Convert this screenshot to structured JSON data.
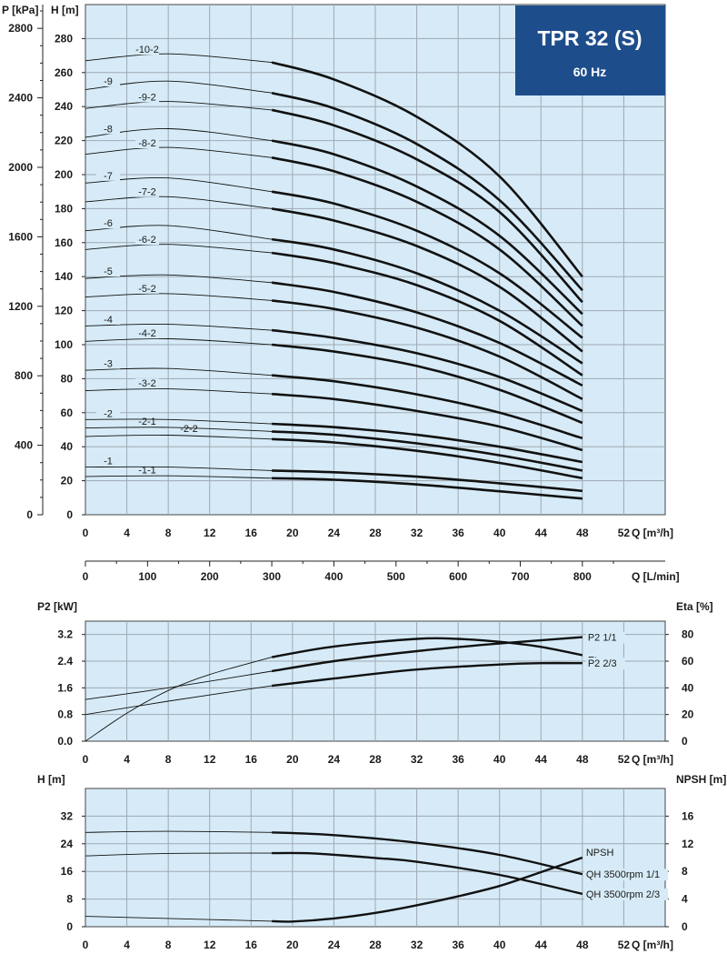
{
  "header": {
    "title": "TPR 32 (S)",
    "subtitle": "60 Hz",
    "box_color": "#1e4d8c"
  },
  "colors": {
    "plot_bg": "#d6ebf7",
    "curve": "#111111"
  },
  "chart_data": [
    {
      "id": "head",
      "type": "line",
      "ylabel_left": "P [kPa]",
      "ylabel_right": "H [m]",
      "xlabel": "Q [m³/h]",
      "xlabel2": "Q [L/min]",
      "xlim": [
        0,
        56
      ],
      "ylim": [
        0,
        300
      ],
      "x_ticks": [
        0,
        4,
        8,
        12,
        16,
        20,
        24,
        28,
        32,
        36,
        40,
        44,
        48,
        52
      ],
      "y_ticks": [
        0,
        20,
        40,
        60,
        80,
        100,
        120,
        140,
        160,
        180,
        200,
        220,
        240,
        260,
        280
      ],
      "kpa_ticks": [
        0,
        400,
        800,
        1200,
        1600,
        2000,
        2400,
        2800
      ],
      "lmin_ticks": [
        0,
        100,
        200,
        300,
        400,
        500,
        600,
        700,
        800
      ],
      "grid": true,
      "operating_range": [
        18,
        48
      ],
      "series": [
        {
          "name": "-1-1",
          "values": [
            [
              0,
              22.5
            ],
            [
              8,
              22.9
            ],
            [
              18,
              21.5
            ],
            [
              24,
              20.6
            ],
            [
              32,
              17.8
            ],
            [
              40,
              13.8
            ],
            [
              48,
              9.5
            ]
          ]
        },
        {
          "name": "-1",
          "values": [
            [
              0,
              28
            ],
            [
              8,
              28
            ],
            [
              18,
              26
            ],
            [
              24,
              25
            ],
            [
              32,
              22.4
            ],
            [
              40,
              18.5
            ],
            [
              48,
              14
            ]
          ]
        },
        {
          "name": "-2-2",
          "values": [
            [
              0,
              46
            ],
            [
              8,
              46.8
            ],
            [
              18,
              44.5
            ],
            [
              24,
              42.5
            ],
            [
              32,
              37.6
            ],
            [
              40,
              30.5
            ],
            [
              48,
              21.5
            ]
          ]
        },
        {
          "name": "-2-1",
          "values": [
            [
              0,
              51
            ],
            [
              8,
              51.4
            ],
            [
              18,
              49
            ],
            [
              24,
              47
            ],
            [
              32,
              42
            ],
            [
              40,
              35
            ],
            [
              48,
              26
            ]
          ]
        },
        {
          "name": "-2",
          "values": [
            [
              0,
              56
            ],
            [
              8,
              56
            ],
            [
              18,
              53.5
            ],
            [
              24,
              51.5
            ],
            [
              32,
              47
            ],
            [
              40,
              40
            ],
            [
              48,
              31
            ]
          ]
        },
        {
          "name": "-3-2",
          "values": [
            [
              0,
              73
            ],
            [
              8,
              74
            ],
            [
              18,
              71
            ],
            [
              24,
              68
            ],
            [
              32,
              61
            ],
            [
              40,
              51.8
            ],
            [
              48,
              38
            ]
          ]
        },
        {
          "name": "-3",
          "values": [
            [
              0,
              85
            ],
            [
              8,
              86
            ],
            [
              18,
              82
            ],
            [
              24,
              78.5
            ],
            [
              32,
              70.8
            ],
            [
              40,
              60
            ],
            [
              48,
              45
            ]
          ]
        },
        {
          "name": "-4-2",
          "values": [
            [
              0,
              102
            ],
            [
              8,
              103.5
            ],
            [
              18,
              100
            ],
            [
              24,
              96
            ],
            [
              32,
              87.5
            ],
            [
              40,
              73.5
            ],
            [
              48,
              54
            ]
          ]
        },
        {
          "name": "-4",
          "values": [
            [
              0,
              111
            ],
            [
              8,
              112
            ],
            [
              18,
              108.5
            ],
            [
              24,
              104
            ],
            [
              32,
              95
            ],
            [
              40,
              81
            ],
            [
              48,
              61
            ]
          ]
        },
        {
          "name": "-5-2",
          "values": [
            [
              0,
              128
            ],
            [
              8,
              130
            ],
            [
              18,
              126
            ],
            [
              24,
              121
            ],
            [
              32,
              110
            ],
            [
              40,
              93
            ],
            [
              48,
              68
            ]
          ]
        },
        {
          "name": "-5",
          "values": [
            [
              0,
              139
            ],
            [
              8,
              141
            ],
            [
              18,
              136.5
            ],
            [
              24,
              131
            ],
            [
              32,
              119
            ],
            [
              40,
              101
            ],
            [
              48,
              76
            ]
          ]
        },
        {
          "name": "-6-2",
          "values": [
            [
              0,
              156
            ],
            [
              8,
              159
            ],
            [
              18,
              154
            ],
            [
              24,
              148
            ],
            [
              32,
              135
            ],
            [
              40,
              114
            ],
            [
              48,
              82
            ]
          ]
        },
        {
          "name": "-6",
          "values": [
            [
              0,
              167
            ],
            [
              8,
              170
            ],
            [
              18,
              162
            ],
            [
              24,
              156
            ],
            [
              32,
              142
            ],
            [
              40,
              120
            ],
            [
              48,
              89
            ]
          ]
        },
        {
          "name": "-7-2",
          "values": [
            [
              0,
              184
            ],
            [
              8,
              187
            ],
            [
              18,
              180
            ],
            [
              24,
              173
            ],
            [
              32,
              158
            ],
            [
              40,
              134
            ],
            [
              48,
              96
            ]
          ]
        },
        {
          "name": "-7",
          "values": [
            [
              0,
              195
            ],
            [
              8,
              198
            ],
            [
              18,
              190
            ],
            [
              24,
              183
            ],
            [
              32,
              167
            ],
            [
              40,
              142
            ],
            [
              48,
              104
            ]
          ]
        },
        {
          "name": "-8-2",
          "values": [
            [
              0,
              212
            ],
            [
              8,
              216
            ],
            [
              18,
              210
            ],
            [
              24,
              202
            ],
            [
              32,
              184
            ],
            [
              40,
              156
            ],
            [
              48,
              111
            ]
          ]
        },
        {
          "name": "-8",
          "values": [
            [
              0,
              222
            ],
            [
              8,
              227
            ],
            [
              18,
              220
            ],
            [
              24,
              212
            ],
            [
              32,
              193
            ],
            [
              40,
              164
            ],
            [
              48,
              118
            ]
          ]
        },
        {
          "name": "-9-2",
          "values": [
            [
              0,
              239
            ],
            [
              8,
              243
            ],
            [
              18,
              238
            ],
            [
              24,
              229
            ],
            [
              32,
              209
            ],
            [
              40,
              178
            ],
            [
              48,
              125
            ]
          ]
        },
        {
          "name": "-9",
          "values": [
            [
              0,
              250
            ],
            [
              8,
              255
            ],
            [
              18,
              248
            ],
            [
              24,
              239
            ],
            [
              32,
              218
            ],
            [
              40,
              185
            ],
            [
              48,
              132
            ]
          ]
        },
        {
          "name": "-10-2",
          "values": [
            [
              0,
              267
            ],
            [
              8,
              271
            ],
            [
              18,
              266
            ],
            [
              24,
              256
            ],
            [
              32,
              234
            ],
            [
              40,
              199
            ],
            [
              48,
              140
            ]
          ]
        }
      ]
    },
    {
      "id": "power",
      "type": "line",
      "ylabel_left": "P2 [kW]",
      "ylabel_right": "Eta [%]",
      "xlabel": "Q [m³/h]",
      "xlim": [
        0,
        56
      ],
      "ylim": [
        0,
        3.6
      ],
      "y2lim": [
        0,
        90
      ],
      "x_ticks": [
        0,
        4,
        8,
        12,
        16,
        20,
        24,
        28,
        32,
        36,
        40,
        44,
        48,
        52
      ],
      "y_ticks": [
        0.0,
        0.8,
        1.6,
        2.4,
        3.2
      ],
      "y_tick_labels": [
        "0.0",
        "0.8",
        "1.6",
        "2.4",
        "3.2"
      ],
      "y2_ticks": [
        0,
        20,
        40,
        60,
        80
      ],
      "grid": true,
      "operating_range": [
        18,
        48
      ],
      "series": [
        {
          "name": "P2 1/1",
          "axis": "left",
          "values": [
            [
              0,
              1.25
            ],
            [
              8,
              1.6
            ],
            [
              18,
              2.1
            ],
            [
              24,
              2.4
            ],
            [
              32,
              2.7
            ],
            [
              40,
              2.93
            ],
            [
              48,
              3.12
            ]
          ]
        },
        {
          "name": "Eta",
          "axis": "right",
          "values": [
            [
              0,
              0
            ],
            [
              4,
              21
            ],
            [
              8,
              38
            ],
            [
              12,
              50
            ],
            [
              18,
              63
            ],
            [
              24,
              71
            ],
            [
              32,
              76.7
            ],
            [
              36,
              76.7
            ],
            [
              40,
              74.5
            ],
            [
              44,
              70.7
            ],
            [
              48,
              64.5
            ]
          ]
        },
        {
          "name": "P2 2/3",
          "axis": "left",
          "values": [
            [
              0,
              0.8
            ],
            [
              8,
              1.2
            ],
            [
              18,
              1.66
            ],
            [
              24,
              1.88
            ],
            [
              32,
              2.15
            ],
            [
              40,
              2.3
            ],
            [
              44,
              2.34
            ],
            [
              48,
              2.34
            ]
          ]
        }
      ]
    },
    {
      "id": "npsh",
      "type": "line",
      "ylabel_left": "H [m]",
      "ylabel_right": "NPSH [m]",
      "xlabel": "Q [m³/h]",
      "xlim": [
        0,
        56
      ],
      "ylim": [
        0,
        40
      ],
      "y2lim": [
        0,
        20
      ],
      "x_ticks": [
        0,
        4,
        8,
        12,
        16,
        20,
        24,
        28,
        32,
        36,
        40,
        44,
        48,
        52
      ],
      "y_ticks": [
        0,
        8,
        16,
        24,
        32
      ],
      "y2_ticks": [
        0,
        4,
        8,
        12,
        16
      ],
      "grid": true,
      "operating_range": [
        18,
        48
      ],
      "series": [
        {
          "name": "NPSH",
          "axis": "right",
          "values": [
            [
              0,
              1.5
            ],
            [
              8,
              1.2
            ],
            [
              18,
              0.8
            ],
            [
              20,
              0.75
            ],
            [
              24,
              1.2
            ],
            [
              28,
              2.0
            ],
            [
              32,
              3.1
            ],
            [
              36,
              4.4
            ],
            [
              40,
              5.9
            ],
            [
              44,
              7.9
            ],
            [
              48,
              10.0
            ]
          ]
        },
        {
          "name": "QH 3500rpm 1/1",
          "axis": "left",
          "values": [
            [
              0,
              27.3
            ],
            [
              8,
              27.6
            ],
            [
              18,
              27.3
            ],
            [
              24,
              26.5
            ],
            [
              32,
              24.3
            ],
            [
              40,
              20.8
            ],
            [
              48,
              15.2
            ]
          ]
        },
        {
          "name": "QH 3500rpm 2/3",
          "axis": "left",
          "values": [
            [
              0,
              20.5
            ],
            [
              8,
              21.2
            ],
            [
              18,
              21.3
            ],
            [
              22,
              21.2
            ],
            [
              28,
              19.9
            ],
            [
              32,
              18.8
            ],
            [
              40,
              15
            ],
            [
              48,
              9.5
            ]
          ]
        }
      ]
    }
  ]
}
